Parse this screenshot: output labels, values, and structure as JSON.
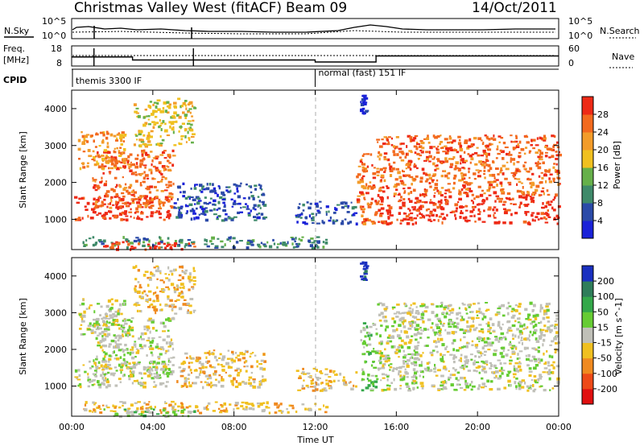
{
  "header": {
    "station": "Christmas Valley West (fitACF)",
    "beam": "Beam 09",
    "date": "14/Oct/2011"
  },
  "status_panel": {
    "nsky_label": "N.Sky",
    "nsearch_label": "N.Search",
    "freq_label_line1": "Freq.",
    "freq_label_line2": "[MHz]",
    "nave_label": "Nave",
    "cpid_label": "CPID",
    "left_ticks_noise": [
      "10^5",
      "10^0"
    ],
    "right_ticks_noise": [
      "10^5",
      "10^0"
    ],
    "left_ticks_freq": [
      "18",
      "8"
    ],
    "right_ticks_freq": [
      "60",
      "0"
    ],
    "cpid_segments": [
      {
        "label": "themis 3300 IF",
        "start_hour": 0
      },
      {
        "label": "normal (fast) 151 IF",
        "start_hour": 12
      }
    ],
    "freq_mhz": [
      {
        "from": 0,
        "to": 3,
        "value": 12.5
      },
      {
        "from": 3,
        "to": 12,
        "value": 11
      },
      {
        "from": 12,
        "to": 15,
        "value": 10
      },
      {
        "from": 15,
        "to": 24,
        "value": 13
      }
    ]
  },
  "chart_data": [
    {
      "type": "heatmap",
      "title": "Power",
      "ylabel": "Slant Range [km]",
      "xlabel": "",
      "xlim": [
        0,
        24
      ],
      "ylim": [
        180,
        4500
      ],
      "x_tick_labels": [
        "00:00",
        "04:00",
        "08:00",
        "12:00",
        "16:00",
        "20:00",
        "00:00"
      ],
      "y_tick_labels": [
        "1000",
        "2000",
        "3000",
        "4000"
      ],
      "y_tick_values": [
        1000,
        2000,
        3000,
        4000
      ],
      "colorbar": {
        "label": "Power [dB]",
        "tick_labels": [
          "4",
          "8",
          "12",
          "16",
          "20",
          "24",
          "28"
        ],
        "colors": [
          "#1a22d8",
          "#2b4aa8",
          "#3f8a6a",
          "#66b04a",
          "#f0c020",
          "#f39c2a",
          "#f36a1e",
          "#ee2a16"
        ]
      },
      "regions": [
        {
          "t0": 0.1,
          "t1": 4.8,
          "r0": 1000,
          "r1": 1700,
          "v": 7
        },
        {
          "t0": 1.0,
          "t1": 5.0,
          "r0": 1300,
          "r1": 2900,
          "v": 6
        },
        {
          "t0": 0.3,
          "t1": 2.6,
          "r0": 2400,
          "r1": 3400,
          "v": 5
        },
        {
          "t0": 3.0,
          "t1": 6.0,
          "r0": 3000,
          "r1": 4300,
          "v": 4
        },
        {
          "t0": 5.0,
          "t1": 9.5,
          "r0": 1000,
          "r1": 2000,
          "v": 1
        },
        {
          "t0": 0.5,
          "t1": 12.5,
          "r0": 250,
          "r1": 550,
          "v": 2
        },
        {
          "t0": 1.5,
          "t1": 6.0,
          "r0": 200,
          "r1": 420,
          "v": 7
        },
        {
          "t0": 11.0,
          "t1": 14.0,
          "r0": 900,
          "r1": 1500,
          "v": 1
        },
        {
          "t0": 14.0,
          "t1": 15.0,
          "r0": 900,
          "r1": 2800,
          "v": 6
        },
        {
          "t0": 15.0,
          "t1": 24.0,
          "r0": 900,
          "r1": 1700,
          "v": 7
        },
        {
          "t0": 15.0,
          "t1": 24.0,
          "r0": 1700,
          "r1": 3300,
          "v": 6
        },
        {
          "t0": 14.2,
          "t1": 14.5,
          "r0": 3900,
          "r1": 4400,
          "v": 0
        }
      ]
    },
    {
      "type": "heatmap",
      "title": "Velocity",
      "ylabel": "Slant Range [km]",
      "xlabel": "Time UT",
      "xlim": [
        0,
        24
      ],
      "ylim": [
        180,
        4500
      ],
      "x_tick_labels": [
        "00:00",
        "04:00",
        "08:00",
        "12:00",
        "16:00",
        "20:00",
        "00:00"
      ],
      "y_tick_labels": [
        "1000",
        "2000",
        "3000",
        "4000"
      ],
      "y_tick_values": [
        1000,
        2000,
        3000,
        4000
      ],
      "colorbar": {
        "label": "Velocity [m s^-1]",
        "tick_labels": [
          "200",
          "100",
          "50",
          "15",
          "-15",
          "-50",
          "-100",
          "-200"
        ],
        "colors": [
          "#1a30c0",
          "#2f7d5a",
          "#34a84a",
          "#66cc33",
          "#c0c0b8",
          "#f0c020",
          "#f08a20",
          "#ee4a18",
          "#e01010"
        ]
      },
      "regions": [
        {
          "t0": 0.1,
          "t1": 4.8,
          "r0": 1000,
          "r1": 1700,
          "v": 4
        },
        {
          "t0": 1.0,
          "t1": 5.0,
          "r0": 1300,
          "r1": 2900,
          "v": 4
        },
        {
          "t0": 0.3,
          "t1": 2.6,
          "r0": 2400,
          "r1": 3400,
          "v": 4
        },
        {
          "t0": 3.0,
          "t1": 6.0,
          "r0": 3000,
          "r1": 4300,
          "v": 5
        },
        {
          "t0": 5.0,
          "t1": 9.5,
          "r0": 1000,
          "r1": 2000,
          "v": 5
        },
        {
          "t0": 0.5,
          "t1": 12.5,
          "r0": 300,
          "r1": 600,
          "v": 5
        },
        {
          "t0": 1.5,
          "t1": 6.0,
          "r0": 200,
          "r1": 420,
          "v": 3
        },
        {
          "t0": 11.0,
          "t1": 14.0,
          "r0": 900,
          "r1": 1500,
          "v": 5
        },
        {
          "t0": 14.2,
          "t1": 15.0,
          "r0": 900,
          "r1": 2800,
          "v": 3
        },
        {
          "t0": 15.0,
          "t1": 24.0,
          "r0": 900,
          "r1": 1700,
          "v": 4
        },
        {
          "t0": 15.0,
          "t1": 24.0,
          "r0": 1700,
          "r1": 3300,
          "v": 4
        },
        {
          "t0": 14.2,
          "t1": 14.5,
          "r0": 3900,
          "r1": 4400,
          "v": 0
        }
      ]
    }
  ]
}
